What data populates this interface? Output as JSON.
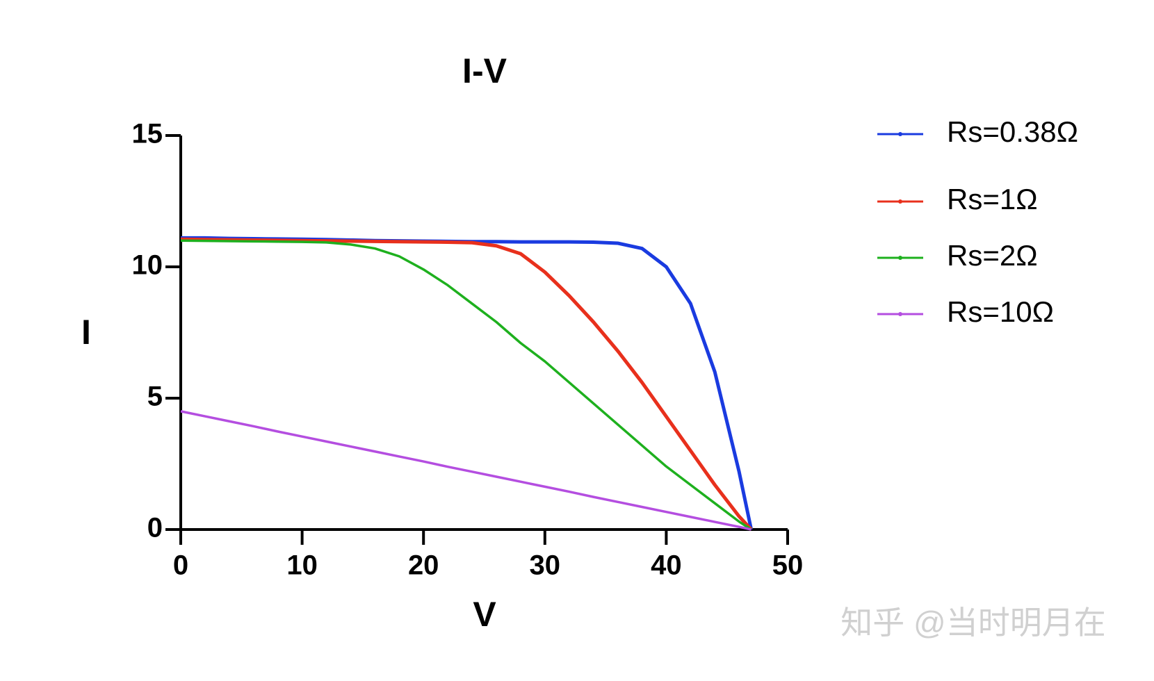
{
  "chart_data": {
    "type": "line",
    "title": "I-V",
    "xlabel": "V",
    "ylabel": "I",
    "x": [
      0,
      2,
      4,
      6,
      8,
      10,
      12,
      14,
      16,
      18,
      20,
      22,
      24,
      26,
      28,
      30,
      32,
      34,
      36,
      38,
      40,
      42,
      44,
      46,
      47
    ],
    "series": [
      {
        "name": "Rs=0.38Ω",
        "color": "#1a3be0",
        "values": [
          11.1,
          11.1,
          11.08,
          11.07,
          11.06,
          11.05,
          11.04,
          11.02,
          11.0,
          10.99,
          10.98,
          10.97,
          10.96,
          10.96,
          10.95,
          10.95,
          10.95,
          10.94,
          10.9,
          10.7,
          10.0,
          8.6,
          6.0,
          2.2,
          0
        ]
      },
      {
        "name": "Rs=1Ω",
        "color": "#e8301c",
        "values": [
          11.05,
          11.04,
          11.03,
          11.02,
          11.01,
          11.0,
          10.99,
          10.98,
          10.97,
          10.96,
          10.95,
          10.94,
          10.92,
          10.8,
          10.5,
          9.8,
          8.9,
          7.9,
          6.8,
          5.6,
          4.3,
          3.0,
          1.7,
          0.5,
          0
        ]
      },
      {
        "name": "Rs=2Ω",
        "color": "#1eb01e",
        "values": [
          11.0,
          10.99,
          10.98,
          10.97,
          10.96,
          10.95,
          10.93,
          10.85,
          10.7,
          10.4,
          9.9,
          9.3,
          8.6,
          7.9,
          7.1,
          6.4,
          5.6,
          4.8,
          4.0,
          3.2,
          2.4,
          1.7,
          1.0,
          0.3,
          0
        ]
      },
      {
        "name": "Rs=10Ω",
        "color": "#b44ee0",
        "values": [
          4.5,
          4.31,
          4.12,
          3.93,
          3.73,
          3.54,
          3.35,
          3.16,
          2.97,
          2.78,
          2.59,
          2.39,
          2.2,
          2.01,
          1.82,
          1.63,
          1.44,
          1.24,
          1.05,
          0.86,
          0.67,
          0.48,
          0.29,
          0.1,
          0
        ]
      }
    ],
    "xlim": [
      0,
      50
    ],
    "xticks": [
      0,
      10,
      20,
      30,
      40,
      50
    ],
    "ylim": [
      0,
      15
    ],
    "yticks": [
      0,
      5,
      10,
      15
    ],
    "grid": false,
    "watermark": "知乎 @当时明月在"
  }
}
